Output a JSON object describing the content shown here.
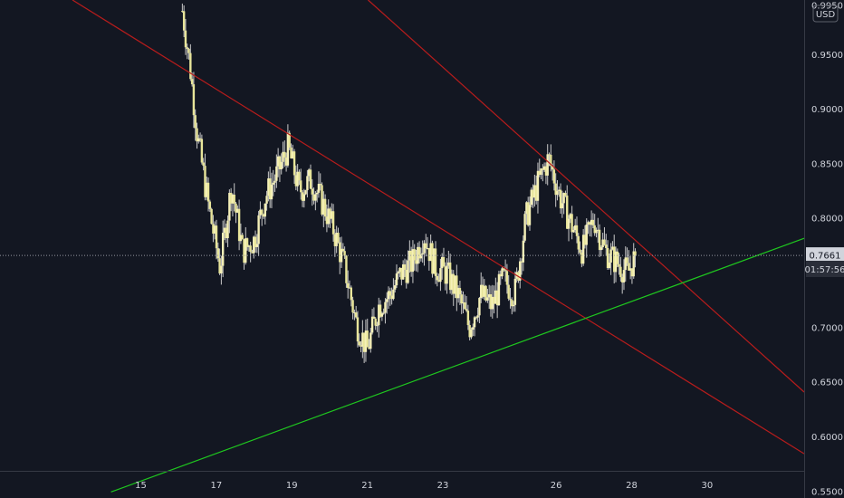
{
  "currency_badge": "USD",
  "last_price_label": "0.7661",
  "countdown_label": "01:57:56",
  "colors": {
    "background": "#131722",
    "axis_text": "#d1d4dc",
    "resistance_line": "#b71c1c",
    "support_line": "#1fc71f",
    "candle_up": "#f5f0b8",
    "candle_down": "#e8e59a",
    "price_line": "#9598a1"
  },
  "chart_data": {
    "type": "candlestick",
    "title": "",
    "xlabel": "",
    "ylabel": "",
    "y_ticks": [
      "0.9950",
      "0.9500",
      "0.9000",
      "0.8500",
      "0.8000",
      "0.7500",
      "0.7000",
      "0.6500",
      "0.6000",
      "0.5500"
    ],
    "x_ticks": [
      {
        "label": "15",
        "day": 15
      },
      {
        "label": "17",
        "day": 17
      },
      {
        "label": "19",
        "day": 19
      },
      {
        "label": "21",
        "day": 21
      },
      {
        "label": "23",
        "day": 23
      },
      {
        "label": "26",
        "day": 26
      },
      {
        "label": "28",
        "day": 28
      },
      {
        "label": "30",
        "day": 30
      }
    ],
    "ylim": [
      0.544,
      1.0
    ],
    "xlim": [
      11.27,
      32.57
    ],
    "grid": false,
    "last_price": 0.7661,
    "series_anchors": [
      [
        16.1,
        0.99
      ],
      [
        16.3,
        0.94
      ],
      [
        16.5,
        0.875
      ],
      [
        16.8,
        0.81
      ],
      [
        17.1,
        0.755
      ],
      [
        17.4,
        0.83
      ],
      [
        17.7,
        0.77
      ],
      [
        18.0,
        0.78
      ],
      [
        18.3,
        0.82
      ],
      [
        18.6,
        0.84
      ],
      [
        18.9,
        0.865
      ],
      [
        19.2,
        0.825
      ],
      [
        19.5,
        0.835
      ],
      [
        19.8,
        0.815
      ],
      [
        20.1,
        0.79
      ],
      [
        20.4,
        0.755
      ],
      [
        20.7,
        0.705
      ],
      [
        21.0,
        0.68
      ],
      [
        21.3,
        0.72
      ],
      [
        21.6,
        0.73
      ],
      [
        21.9,
        0.75
      ],
      [
        22.2,
        0.76
      ],
      [
        22.5,
        0.785
      ],
      [
        22.8,
        0.755
      ],
      [
        23.1,
        0.75
      ],
      [
        23.4,
        0.73
      ],
      [
        23.7,
        0.7
      ],
      [
        24.0,
        0.73
      ],
      [
        24.3,
        0.72
      ],
      [
        24.6,
        0.745
      ],
      [
        24.9,
        0.73
      ],
      [
        25.2,
        0.8
      ],
      [
        25.5,
        0.83
      ],
      [
        25.8,
        0.855
      ],
      [
        26.1,
        0.82
      ],
      [
        26.4,
        0.795
      ],
      [
        26.7,
        0.77
      ],
      [
        27.0,
        0.8
      ],
      [
        27.3,
        0.77
      ],
      [
        27.6,
        0.76
      ],
      [
        27.9,
        0.75
      ],
      [
        28.1,
        0.766
      ]
    ],
    "lines": [
      {
        "name": "",
        "style": "resistance",
        "points": [
          [
            13.19,
            1.0
          ],
          [
            32.57,
            0.5845
          ]
        ]
      },
      {
        "name": "",
        "style": "resistance",
        "points": [
          [
            21.02,
            1.0
          ],
          [
            32.57,
            0.641
          ]
        ]
      },
      {
        "name": "",
        "style": "support",
        "points": [
          [
            14.21,
            0.5495
          ],
          [
            32.57,
            0.7818
          ]
        ]
      }
    ]
  }
}
